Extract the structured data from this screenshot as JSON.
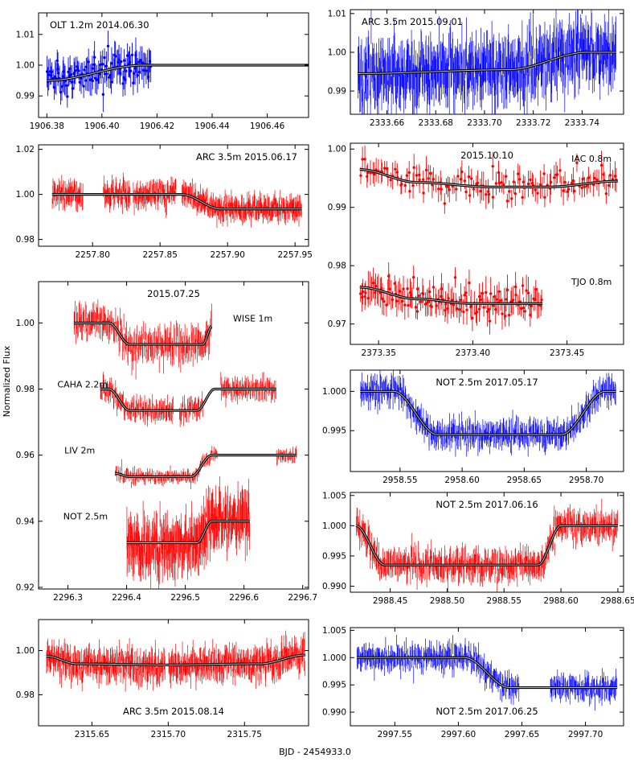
{
  "figure": {
    "xlabel": "BJD - 2454933.0",
    "ylabel": "Normalized Flux"
  },
  "colors": {
    "red": "#ff0000",
    "blue": "#0000ff",
    "model": "#000000",
    "model_inner": "#bbbbbb"
  },
  "chart_data": [
    {
      "id": "p1",
      "type": "scatter",
      "style": "points",
      "xlim": [
        1906.377,
        1906.475
      ],
      "ylim": [
        0.983,
        1.017
      ],
      "xticks": [
        1906.38,
        1906.4,
        1906.42,
        1906.44,
        1906.46
      ],
      "xtick_labels": [
        "1906.38",
        "1906.40",
        "1906.42",
        "1906.44",
        "1906.46"
      ],
      "yticks": [
        0.99,
        1.0,
        1.01
      ],
      "ytick_labels": [
        "0.99",
        "1.00",
        "1.01"
      ],
      "labels": [
        {
          "text": "OLT 1.2m 2014.06.30",
          "pos": "top-left"
        }
      ],
      "series": [
        {
          "name": "OLT 1.2m",
          "color": "blue",
          "x": [
            1906.38,
            1906.418
          ],
          "offset": 0,
          "scatter": 0.005,
          "n": 110,
          "model": {
            "x": [
              1906.38,
              1906.415,
              1906.475
            ],
            "y": [
              0.995,
              1.0,
              1.0
            ]
          }
        }
      ]
    },
    {
      "id": "p2",
      "type": "line",
      "style": "dense",
      "xlim": [
        2333.645,
        2333.757
      ],
      "ylim": [
        0.984,
        1.011
      ],
      "xticks": [
        2333.66,
        2333.68,
        2333.7,
        2333.72,
        2333.74
      ],
      "xtick_labels": [
        "2333.66",
        "2333.68",
        "2333.70",
        "2333.72",
        "2333.74"
      ],
      "yticks": [
        0.99,
        1.0,
        1.01
      ],
      "ytick_labels": [
        "0.99",
        "1.00",
        "1.01"
      ],
      "labels": [
        {
          "text": "ARC 3.5m 2015.09.01",
          "pos": "top-left"
        }
      ],
      "series": [
        {
          "name": "ARC 3.5m",
          "color": "blue",
          "x": [
            2333.648,
            2333.754
          ],
          "offset": 0,
          "scatter": 0.006,
          "n": 520,
          "model": {
            "x": [
              2333.648,
              2333.71,
              2333.742,
              2333.754
            ],
            "y": [
              0.9945,
              0.9955,
              1.0,
              1.0
            ]
          }
        }
      ]
    },
    {
      "id": "p3",
      "type": "line",
      "style": "dense",
      "xlim": [
        2257.76,
        2257.96
      ],
      "ylim": [
        0.977,
        1.022
      ],
      "xticks": [
        2257.8,
        2257.85,
        2257.9,
        2257.95
      ],
      "xtick_labels": [
        "2257.80",
        "2257.85",
        "2257.90",
        "2257.95"
      ],
      "yticks": [
        0.98,
        1.0,
        1.02
      ],
      "ytick_labels": [
        "0.98",
        "1.00",
        "1.02"
      ],
      "labels": [
        {
          "text": "ARC 3.5m 2015.06.17",
          "pos": "top-right"
        }
      ],
      "gaps": [
        [
          2257.793,
          2257.808
        ],
        [
          2257.828,
          2257.83
        ],
        [
          2257.862,
          2257.866
        ]
      ],
      "series": [
        {
          "name": "ARC 3.5m",
          "color": "red",
          "x": [
            2257.77,
            2257.955
          ],
          "offset": 0,
          "scatter": 0.004,
          "n": 560,
          "model": {
            "x": [
              2257.77,
              2257.866,
              2257.895,
              2257.955
            ],
            "y": [
              1.0,
              1.0,
              0.9935,
              0.9935
            ]
          }
        }
      ]
    },
    {
      "id": "p4",
      "type": "line",
      "style": "dense",
      "xlim": [
        2373.335,
        2373.48
      ],
      "ylim": [
        0.9665,
        1.001
      ],
      "xticks": [
        2373.35,
        2373.4,
        2373.45
      ],
      "xtick_labels": [
        "2373.35",
        "2373.40",
        "2373.45"
      ],
      "yticks": [
        0.97,
        0.98,
        0.99,
        1.0
      ],
      "ytick_labels": [
        "0.97",
        "0.98",
        "0.99",
        "1.00"
      ],
      "labels": [
        {
          "text": "2015.10.10",
          "pos": "top-center"
        }
      ],
      "series": [
        {
          "name": "IAC 0.8m",
          "color": "red",
          "x": [
            2373.34,
            2373.477
          ],
          "offset": 0,
          "style": "points",
          "scatter": 0.0022,
          "n": 130,
          "label": {
            "text": "IAC 0.8m",
            "x": 2373.463,
            "y": 0.9978
          },
          "model": {
            "x": [
              2373.34,
              2373.37,
              2373.41,
              2373.44,
              2373.477
            ],
            "y": [
              0.9965,
              0.9943,
              0.9935,
              0.9935,
              0.9945
            ]
          }
        },
        {
          "name": "TJO 0.8m",
          "color": "red",
          "x": [
            2373.34,
            2373.437
          ],
          "offset": -0.02,
          "style": "points",
          "scatter": 0.0025,
          "n": 130,
          "label": {
            "text": "TJO 0.8m",
            "x": 2373.463,
            "y": 0.9767
          },
          "model": {
            "x": [
              2373.34,
              2373.37,
              2373.4,
              2373.437
            ],
            "y": [
              0.9963,
              0.9943,
              0.9935,
              0.9935
            ]
          }
        }
      ]
    },
    {
      "id": "p5",
      "type": "line",
      "style": "dense",
      "xlim": [
        2296.25,
        2296.71
      ],
      "ylim": [
        0.9195,
        1.0125
      ],
      "xticks": [
        2296.3,
        2296.4,
        2296.5,
        2296.6,
        2296.7
      ],
      "xtick_labels": [
        "2296.3",
        "2296.4",
        "2296.5",
        "2296.6",
        "2296.7"
      ],
      "yticks": [
        0.92,
        0.94,
        0.96,
        0.98,
        1.0
      ],
      "ytick_labels": [
        "0.92",
        "0.94",
        "0.96",
        "0.98",
        "1.00"
      ],
      "labels": [
        {
          "text": "2015.07.25",
          "pos": "top-center"
        }
      ],
      "series": [
        {
          "name": "WISE 1m",
          "color": "red",
          "x": [
            2296.31,
            2296.545
          ],
          "offset": 0,
          "scatter": 0.0035,
          "n": 230,
          "label": {
            "text": "WISE 1m",
            "x": 2296.615,
            "y": 1.0005
          },
          "model": {
            "x": [
              2296.31,
              2296.37,
              2296.405,
              2296.53,
              2296.545
            ],
            "y": [
              1.0,
              1.0,
              0.9935,
              0.9935,
              0.999
            ]
          }
        },
        {
          "name": "CAHA 2.2m",
          "color": "red",
          "x": [
            2296.355,
            2296.655
          ],
          "offset": -0.02,
          "scatter": 0.0025,
          "n": 300,
          "label": {
            "text": "CAHA 2.2m",
            "x": 2296.325,
            "y": 0.9805
          },
          "gaps": [
            [
              2296.48,
              2296.49
            ],
            [
              2296.53,
              2296.56
            ]
          ],
          "model": {
            "x": [
              2296.355,
              2296.37,
              2296.405,
              2296.52,
              2296.55,
              2296.655
            ],
            "y": [
              1.0,
              1.0,
              0.9935,
              0.9935,
              1.0,
              1.0
            ]
          }
        },
        {
          "name": "LIV 2m",
          "color": "red",
          "x": [
            2296.38,
            2296.69
          ],
          "offset": -0.04,
          "scatter": 0.0015,
          "n": 280,
          "label": {
            "text": "LIV 2m",
            "x": 2296.32,
            "y": 0.9605
          },
          "gaps": [
            [
              2296.555,
              2296.655
            ]
          ],
          "model": {
            "x": [
              2296.38,
              2296.405,
              2296.51,
              2296.545,
              2296.69
            ],
            "y": [
              0.9945,
              0.9935,
              0.9935,
              1.0,
              1.0
            ]
          }
        },
        {
          "name": "NOT 2.5m",
          "color": "red",
          "x": [
            2296.4,
            2296.61
          ],
          "offset": -0.06,
          "scatter": 0.006,
          "n": 300,
          "label": {
            "text": "NOT 2.5m",
            "x": 2296.33,
            "y": 0.9405
          },
          "model": {
            "x": [
              2296.4,
              2296.52,
              2296.545,
              2296.61
            ],
            "y": [
              0.9935,
              0.9935,
              1.0,
              1.0
            ]
          }
        }
      ]
    },
    {
      "id": "p6",
      "type": "line",
      "style": "dense",
      "xlim": [
        2958.51,
        2958.73
      ],
      "ylim": [
        0.9898,
        1.0027
      ],
      "xticks": [
        2958.55,
        2958.6,
        2958.65,
        2958.7
      ],
      "xtick_labels": [
        "2958.55",
        "2958.60",
        "2958.65",
        "2958.70"
      ],
      "yticks": [
        0.995,
        1.0
      ],
      "ytick_labels": [
        "0.995",
        "1.000"
      ],
      "labels": [
        {
          "text": "NOT 2.5m 2017.05.17",
          "pos": "top-center"
        }
      ],
      "series": [
        {
          "name": "NOT 2.5m",
          "color": "blue",
          "x": [
            2958.518,
            2958.724
          ],
          "offset": 0,
          "scatter": 0.0013,
          "n": 420,
          "model": {
            "x": [
              2958.518,
              2958.545,
              2958.58,
              2958.68,
              2958.715,
              2958.724
            ],
            "y": [
              1.0,
              1.0,
              0.9945,
              0.9945,
              1.0,
              1.0
            ]
          }
        }
      ]
    },
    {
      "id": "p7",
      "type": "line",
      "style": "dense",
      "xlim": [
        2988.415,
        2988.655
      ],
      "ylim": [
        0.989,
        1.0055
      ],
      "xticks": [
        2988.45,
        2988.5,
        2988.55,
        2988.6,
        2988.65
      ],
      "xtick_labels": [
        "2988.45",
        "2988.50",
        "2988.55",
        "2988.60",
        "2988.65"
      ],
      "yticks": [
        0.99,
        0.995,
        1.0,
        1.005
      ],
      "ytick_labels": [
        "0.990",
        "0.995",
        "1.000",
        "1.005"
      ],
      "labels": [
        {
          "text": "NOT 2.5m 2017.06.16",
          "pos": "top-center"
        }
      ],
      "series": [
        {
          "name": "NOT 2.5m",
          "color": "red",
          "x": [
            2988.42,
            2988.65
          ],
          "offset": 0,
          "scatter": 0.0018,
          "n": 480,
          "model": {
            "x": [
              2988.42,
              2988.445,
              2988.58,
              2988.6,
              2988.65
            ],
            "y": [
              1.0,
              0.9935,
              0.9935,
              1.0,
              1.0
            ]
          }
        }
      ]
    },
    {
      "id": "p8",
      "type": "line",
      "style": "dense",
      "xlim": [
        2315.615,
        2315.792
      ],
      "ylim": [
        0.966,
        1.014
      ],
      "xticks": [
        2315.65,
        2315.7,
        2315.75
      ],
      "xtick_labels": [
        "2315.65",
        "2315.70",
        "2315.75"
      ],
      "yticks": [
        0.98,
        1.0
      ],
      "ytick_labels": [
        "0.98",
        "1.00"
      ],
      "labels": [
        {
          "text": "ARC 3.5m 2015.08.14",
          "pos": "bottom-center"
        }
      ],
      "gaps": [
        [
          2315.698,
          2315.7
        ]
      ],
      "series": [
        {
          "name": "ARC 3.5m",
          "color": "red",
          "x": [
            2315.62,
            2315.79
          ],
          "offset": 0,
          "scatter": 0.005,
          "n": 560,
          "model": {
            "x": [
              2315.62,
              2315.64,
              2315.7,
              2315.76,
              2315.79
            ],
            "y": [
              0.9975,
              0.994,
              0.9935,
              0.994,
              0.998
            ]
          }
        }
      ]
    },
    {
      "id": "p9",
      "type": "line",
      "style": "dense",
      "xlim": [
        2997.515,
        2997.73
      ],
      "ylim": [
        0.9875,
        1.0055
      ],
      "xticks": [
        2997.55,
        2997.6,
        2997.65,
        2997.7
      ],
      "xtick_labels": [
        "2997.55",
        "2997.60",
        "2997.65",
        "2997.70"
      ],
      "yticks": [
        0.99,
        0.995,
        1.0,
        1.005
      ],
      "ytick_labels": [
        "0.990",
        "0.995",
        "1.000",
        "1.005"
      ],
      "labels": [
        {
          "text": "NOT 2.5m 2017.06.25",
          "pos": "bottom-center"
        }
      ],
      "gaps": [
        [
          2997.648,
          2997.672
        ]
      ],
      "series": [
        {
          "name": "NOT 2.5m",
          "color": "blue",
          "x": [
            2997.52,
            2997.725
          ],
          "offset": 0,
          "scatter": 0.0017,
          "n": 430,
          "model": {
            "x": [
              2997.52,
              2997.605,
              2997.64,
              2997.725
            ],
            "y": [
              1.0,
              1.0,
              0.9945,
              0.9945
            ]
          }
        }
      ]
    }
  ]
}
